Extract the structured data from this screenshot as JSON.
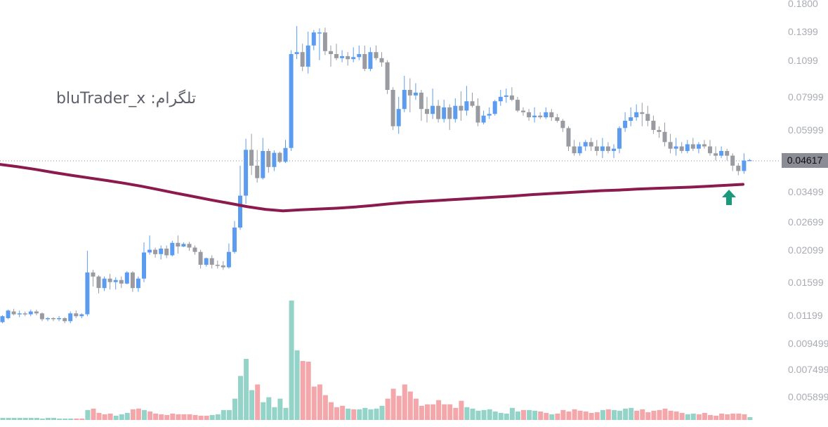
{
  "watermark": {
    "label": "تلگرام: bluTrader_x"
  },
  "price_badge": {
    "value": "0.04617"
  },
  "signal": {
    "icon": "up-arrow-icon",
    "color": "#1a9a7b"
  },
  "colors": {
    "bull": "#5b9cf0",
    "bear": "#9a9ba1",
    "vol_up": "#94d3c7",
    "vol_down": "#f3a7ab",
    "ma": "#8b1a4f",
    "axis_text": "#a9acb3"
  },
  "chart_data": {
    "type": "candlestick",
    "title": "",
    "y_scale": "log",
    "grid": false,
    "y_ticks": [
      "0.1800",
      "0.1399",
      "0.1099",
      "0.07999",
      "0.05999",
      "0.03499",
      "0.02699",
      "0.02099",
      "0.01599",
      "0.01199",
      "0.009499",
      "0.007499",
      "0.005899"
    ],
    "current_price": 0.04617,
    "moving_average": [
      0.0445,
      0.0436,
      0.0426,
      0.0415,
      0.0405,
      0.0396,
      0.0387,
      0.0378,
      0.0368,
      0.0357,
      0.0346,
      0.0336,
      0.0326,
      0.0317,
      0.0308,
      0.0301,
      0.0297,
      0.03,
      0.0302,
      0.0304,
      0.0307,
      0.0311,
      0.0316,
      0.032,
      0.0323,
      0.0326,
      0.0329,
      0.0332,
      0.0335,
      0.0338,
      0.0342,
      0.0345,
      0.0348,
      0.0351,
      0.0354,
      0.0356,
      0.0359,
      0.0361,
      0.0363,
      0.0365,
      0.0368,
      0.0371,
      0.0374
    ],
    "candles": [
      [
        0.0113,
        0.0119,
        0.0112,
        0.012
      ],
      [
        0.0117,
        0.0125,
        0.0116,
        0.0126
      ],
      [
        0.0124,
        0.0121,
        0.012,
        0.0127
      ],
      [
        0.0121,
        0.0122,
        0.0118,
        0.0125
      ],
      [
        0.0122,
        0.0121,
        0.0119,
        0.0124
      ],
      [
        0.0121,
        0.0124,
        0.0119,
        0.0126
      ],
      [
        0.0124,
        0.0122,
        0.012,
        0.0126
      ],
      [
        0.0122,
        0.0116,
        0.0114,
        0.0123
      ],
      [
        0.0116,
        0.0117,
        0.0114,
        0.0118
      ],
      [
        0.0117,
        0.0116,
        0.0114,
        0.0118
      ],
      [
        0.0116,
        0.0117,
        0.0114,
        0.0119
      ],
      [
        0.0117,
        0.0114,
        0.0112,
        0.0118
      ],
      [
        0.0114,
        0.0122,
        0.0112,
        0.0124
      ],
      [
        0.0122,
        0.0119,
        0.0117,
        0.0125
      ],
      [
        0.0119,
        0.0121,
        0.0117,
        0.0122
      ],
      [
        0.0121,
        0.0174,
        0.0119,
        0.021
      ],
      [
        0.0174,
        0.0168,
        0.0154,
        0.0178
      ],
      [
        0.0168,
        0.0152,
        0.0145,
        0.017
      ],
      [
        0.0152,
        0.0165,
        0.0148,
        0.0168
      ],
      [
        0.0165,
        0.016,
        0.015,
        0.0172
      ],
      [
        0.016,
        0.0163,
        0.015,
        0.0167
      ],
      [
        0.0163,
        0.0158,
        0.0152,
        0.0168
      ],
      [
        0.0158,
        0.0174,
        0.0157,
        0.0176
      ],
      [
        0.0174,
        0.0152,
        0.0147,
        0.0176
      ],
      [
        0.0152,
        0.0165,
        0.0147,
        0.0168
      ],
      [
        0.0165,
        0.0207,
        0.016,
        0.0226
      ],
      [
        0.0207,
        0.0212,
        0.0203,
        0.024
      ],
      [
        0.0212,
        0.0204,
        0.0198,
        0.0216
      ],
      [
        0.0204,
        0.0214,
        0.0195,
        0.022
      ],
      [
        0.0214,
        0.0202,
        0.0197,
        0.022
      ],
      [
        0.0202,
        0.0225,
        0.02,
        0.0229
      ],
      [
        0.0225,
        0.0218,
        0.0205,
        0.024
      ],
      [
        0.0218,
        0.0223,
        0.0217,
        0.0226
      ],
      [
        0.0223,
        0.0216,
        0.021,
        0.0227
      ],
      [
        0.0216,
        0.0208,
        0.0203,
        0.022
      ],
      [
        0.0208,
        0.0186,
        0.018,
        0.0212
      ],
      [
        0.0186,
        0.0197,
        0.0183,
        0.0198
      ],
      [
        0.0197,
        0.0186,
        0.018,
        0.0202
      ],
      [
        0.0186,
        0.0185,
        0.018,
        0.0193
      ],
      [
        0.0185,
        0.0182,
        0.0178,
        0.0192
      ],
      [
        0.0182,
        0.0208,
        0.018,
        0.0224
      ],
      [
        0.0208,
        0.0257,
        0.0205,
        0.0272
      ],
      [
        0.0257,
        0.0339,
        0.0252,
        0.044
      ],
      [
        0.0339,
        0.0505,
        0.0316,
        0.0556
      ],
      [
        0.0505,
        0.044,
        0.0406,
        0.058
      ],
      [
        0.044,
        0.0395,
        0.038,
        0.0504
      ],
      [
        0.0395,
        0.05,
        0.039,
        0.056
      ],
      [
        0.05,
        0.0435,
        0.0414,
        0.051
      ],
      [
        0.0435,
        0.0492,
        0.042,
        0.0503
      ],
      [
        0.0492,
        0.0455,
        0.045,
        0.0498
      ],
      [
        0.0455,
        0.0513,
        0.045,
        0.055
      ],
      [
        0.0513,
        0.116,
        0.05,
        0.12
      ],
      [
        0.116,
        0.118,
        0.111,
        0.148
      ],
      [
        0.118,
        0.104,
        0.1,
        0.127
      ],
      [
        0.104,
        0.125,
        0.098,
        0.141
      ],
      [
        0.125,
        0.14,
        0.12,
        0.143
      ],
      [
        0.14,
        0.14,
        0.11,
        0.145
      ],
      [
        0.14,
        0.119,
        0.115,
        0.146
      ],
      [
        0.119,
        0.116,
        0.104,
        0.125
      ],
      [
        0.116,
        0.112,
        0.11,
        0.127
      ],
      [
        0.112,
        0.114,
        0.108,
        0.12
      ],
      [
        0.114,
        0.111,
        0.105,
        0.118
      ],
      [
        0.111,
        0.113,
        0.108,
        0.123
      ],
      [
        0.113,
        0.116,
        0.11,
        0.125
      ],
      [
        0.116,
        0.102,
        0.1,
        0.125
      ],
      [
        0.102,
        0.118,
        0.1,
        0.123
      ],
      [
        0.118,
        0.112,
        0.11,
        0.125
      ],
      [
        0.112,
        0.108,
        0.104,
        0.118
      ],
      [
        0.108,
        0.085,
        0.082,
        0.11
      ],
      [
        0.085,
        0.062,
        0.06,
        0.087
      ],
      [
        0.062,
        0.072,
        0.058,
        0.08
      ],
      [
        0.072,
        0.085,
        0.07,
        0.096
      ],
      [
        0.085,
        0.081,
        0.07,
        0.094
      ],
      [
        0.081,
        0.083,
        0.078,
        0.09
      ],
      [
        0.083,
        0.072,
        0.065,
        0.085
      ],
      [
        0.072,
        0.069,
        0.064,
        0.08
      ],
      [
        0.069,
        0.074,
        0.066,
        0.086
      ],
      [
        0.074,
        0.066,
        0.064,
        0.078
      ],
      [
        0.066,
        0.073,
        0.064,
        0.078
      ],
      [
        0.073,
        0.066,
        0.06,
        0.075
      ],
      [
        0.066,
        0.074,
        0.064,
        0.079
      ],
      [
        0.074,
        0.071,
        0.065,
        0.084
      ],
      [
        0.071,
        0.077,
        0.068,
        0.088
      ],
      [
        0.077,
        0.074,
        0.073,
        0.083
      ],
      [
        0.074,
        0.064,
        0.062,
        0.079
      ],
      [
        0.064,
        0.068,
        0.063,
        0.071
      ],
      [
        0.068,
        0.069,
        0.066,
        0.073
      ],
      [
        0.069,
        0.077,
        0.068,
        0.078
      ],
      [
        0.077,
        0.08,
        0.074,
        0.085
      ],
      [
        0.08,
        0.081,
        0.076,
        0.086
      ],
      [
        0.081,
        0.078,
        0.077,
        0.087
      ],
      [
        0.078,
        0.071,
        0.07,
        0.08
      ],
      [
        0.071,
        0.07,
        0.068,
        0.073
      ],
      [
        0.07,
        0.067,
        0.065,
        0.072
      ],
      [
        0.067,
        0.068,
        0.064,
        0.073
      ],
      [
        0.068,
        0.067,
        0.066,
        0.07
      ],
      [
        0.067,
        0.07,
        0.066,
        0.073
      ],
      [
        0.07,
        0.067,
        0.065,
        0.072
      ],
      [
        0.067,
        0.065,
        0.064,
        0.069
      ],
      [
        0.065,
        0.061,
        0.059,
        0.066
      ],
      [
        0.061,
        0.052,
        0.05,
        0.062
      ],
      [
        0.052,
        0.049,
        0.048,
        0.055
      ],
      [
        0.049,
        0.052,
        0.048,
        0.054
      ],
      [
        0.052,
        0.054,
        0.05,
        0.055
      ],
      [
        0.054,
        0.052,
        0.05,
        0.056
      ],
      [
        0.052,
        0.05,
        0.048,
        0.055
      ],
      [
        0.05,
        0.052,
        0.047,
        0.056
      ],
      [
        0.052,
        0.05,
        0.049,
        0.054
      ],
      [
        0.05,
        0.051,
        0.047,
        0.053
      ],
      [
        0.051,
        0.061,
        0.049,
        0.062
      ],
      [
        0.061,
        0.065,
        0.059,
        0.07
      ],
      [
        0.065,
        0.067,
        0.062,
        0.073
      ],
      [
        0.067,
        0.07,
        0.065,
        0.075
      ],
      [
        0.07,
        0.069,
        0.062,
        0.076
      ],
      [
        0.069,
        0.065,
        0.062,
        0.074
      ],
      [
        0.065,
        0.06,
        0.058,
        0.068
      ],
      [
        0.06,
        0.059,
        0.056,
        0.062
      ],
      [
        0.059,
        0.054,
        0.052,
        0.064
      ],
      [
        0.054,
        0.051,
        0.049,
        0.058
      ],
      [
        0.051,
        0.052,
        0.048,
        0.056
      ],
      [
        0.052,
        0.05,
        0.049,
        0.054
      ],
      [
        0.05,
        0.053,
        0.049,
        0.055
      ],
      [
        0.053,
        0.051,
        0.05,
        0.056
      ],
      [
        0.051,
        0.053,
        0.049,
        0.054
      ],
      [
        0.053,
        0.052,
        0.051,
        0.055
      ],
      [
        0.052,
        0.049,
        0.048,
        0.055
      ],
      [
        0.049,
        0.048,
        0.046,
        0.052
      ],
      [
        0.048,
        0.05,
        0.047,
        0.052
      ],
      [
        0.05,
        0.048,
        0.046,
        0.051
      ],
      [
        0.048,
        0.044,
        0.042,
        0.049
      ],
      [
        0.044,
        0.042,
        0.0405,
        0.045
      ],
      [
        0.042,
        0.046,
        0.041,
        0.049
      ],
      [
        0.046,
        0.0462,
        0.0458,
        0.0466
      ]
    ],
    "volume": [
      [
        "up",
        3
      ],
      [
        "up",
        3
      ],
      [
        "up",
        3
      ],
      [
        "up",
        3
      ],
      [
        "up",
        3
      ],
      [
        "up",
        3
      ],
      [
        "up",
        3
      ],
      [
        "up",
        2
      ],
      [
        "up",
        3
      ],
      [
        "up",
        3
      ],
      [
        "up",
        2
      ],
      [
        "up",
        2
      ],
      [
        "up",
        2
      ],
      [
        "down",
        2
      ],
      [
        "down",
        2
      ],
      [
        "up",
        14
      ],
      [
        "down",
        16
      ],
      [
        "down",
        10
      ],
      [
        "down",
        8
      ],
      [
        "down",
        9
      ],
      [
        "up",
        6
      ],
      [
        "up",
        8
      ],
      [
        "up",
        10
      ],
      [
        "down",
        15
      ],
      [
        "down",
        16
      ],
      [
        "up",
        14
      ],
      [
        "down",
        12
      ],
      [
        "down",
        9
      ],
      [
        "down",
        8
      ],
      [
        "down",
        7
      ],
      [
        "down",
        9
      ],
      [
        "down",
        8
      ],
      [
        "down",
        8
      ],
      [
        "down",
        8
      ],
      [
        "down",
        7
      ],
      [
        "down",
        6
      ],
      [
        "down",
        6
      ],
      [
        "up",
        7
      ],
      [
        "up",
        8
      ],
      [
        "up",
        14
      ],
      [
        "up",
        14
      ],
      [
        "up",
        30
      ],
      [
        "up",
        62
      ],
      [
        "up",
        86
      ],
      [
        "up",
        42
      ],
      [
        "down",
        50
      ],
      [
        "up",
        25
      ],
      [
        "up",
        32
      ],
      [
        "up",
        18
      ],
      [
        "up",
        30
      ],
      [
        "up",
        17
      ],
      [
        "up",
        168
      ],
      [
        "up",
        98
      ],
      [
        "down",
        83
      ],
      [
        "down",
        82
      ],
      [
        "down",
        47
      ],
      [
        "down",
        50
      ],
      [
        "down",
        35
      ],
      [
        "down",
        25
      ],
      [
        "down",
        18
      ],
      [
        "down",
        20
      ],
      [
        "up",
        16
      ],
      [
        "down",
        15
      ],
      [
        "up",
        15
      ],
      [
        "up",
        17
      ],
      [
        "up",
        15
      ],
      [
        "up",
        16
      ],
      [
        "up",
        20
      ],
      [
        "down",
        30
      ],
      [
        "down",
        44
      ],
      [
        "down",
        34
      ],
      [
        "down",
        50
      ],
      [
        "down",
        40
      ],
      [
        "down",
        30
      ],
      [
        "down",
        20
      ],
      [
        "down",
        22
      ],
      [
        "down",
        22
      ],
      [
        "down",
        28
      ],
      [
        "down",
        22
      ],
      [
        "down",
        22
      ],
      [
        "down",
        17
      ],
      [
        "down",
        27
      ],
      [
        "up",
        18
      ],
      [
        "up",
        16
      ],
      [
        "up",
        13
      ],
      [
        "up",
        14
      ],
      [
        "up",
        15
      ],
      [
        "up",
        12
      ],
      [
        "up",
        10
      ],
      [
        "up",
        9
      ],
      [
        "up",
        17
      ],
      [
        "up",
        12
      ],
      [
        "down",
        14
      ],
      [
        "up",
        14
      ],
      [
        "up",
        13
      ],
      [
        "down",
        12
      ],
      [
        "down",
        10
      ],
      [
        "up",
        8
      ],
      [
        "down",
        9
      ],
      [
        "down",
        14
      ],
      [
        "down",
        12
      ],
      [
        "down",
        15
      ],
      [
        "down",
        13
      ],
      [
        "down",
        12
      ],
      [
        "down",
        10
      ],
      [
        "down",
        11
      ],
      [
        "up",
        14
      ],
      [
        "down",
        15
      ],
      [
        "up",
        14
      ],
      [
        "up",
        13
      ],
      [
        "up",
        16
      ],
      [
        "up",
        17
      ],
      [
        "down",
        13
      ],
      [
        "down",
        15
      ],
      [
        "down",
        11
      ],
      [
        "down",
        13
      ],
      [
        "down",
        14
      ],
      [
        "down",
        16
      ],
      [
        "down",
        13
      ],
      [
        "down",
        12
      ],
      [
        "down",
        10
      ],
      [
        "up",
        8
      ],
      [
        "up",
        9
      ],
      [
        "down",
        8
      ],
      [
        "down",
        10
      ],
      [
        "down",
        7
      ],
      [
        "down",
        6
      ],
      [
        "down",
        9
      ],
      [
        "down",
        8
      ],
      [
        "down",
        9
      ],
      [
        "down",
        9
      ],
      [
        "down",
        8
      ],
      [
        "up",
        4
      ]
    ]
  }
}
